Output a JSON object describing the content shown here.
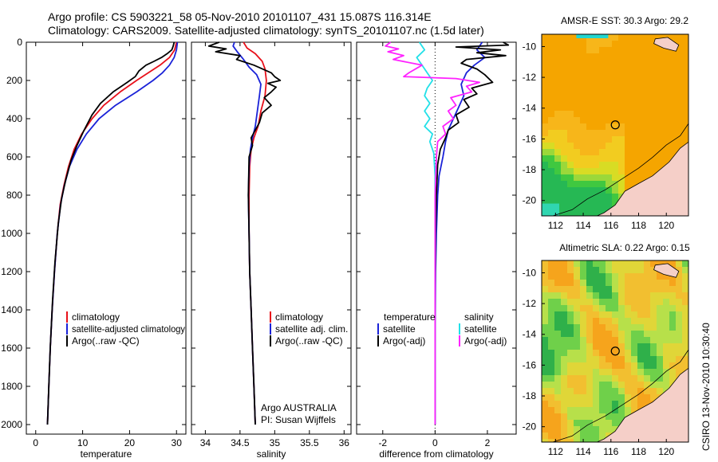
{
  "header": {
    "line1": "Argo profile: CS 5903221_58 05-Nov-2010 20101107_431 15.087S 116.314E",
    "line2": "Climatology: CARS2009. Satellite-adjusted climatology: synTS_20101107.nc (1.5d later)"
  },
  "credit": "CSIRO 13-Nov-2010 10:30:40",
  "colors": {
    "red": "#e8101a",
    "blue": "#1a22d8",
    "black": "#000000",
    "cyan": "#22e0e8",
    "magenta": "#ff22ff"
  },
  "chart_data": [
    {
      "type": "line",
      "xlabel": "temperature",
      "xlim": [
        -2,
        32
      ],
      "ylim": [
        2050,
        0
      ],
      "xticks": [
        0,
        10,
        20,
        30
      ],
      "yticks": [
        0,
        200,
        400,
        600,
        800,
        1000,
        1200,
        1400,
        1600,
        1800,
        2000
      ],
      "series": [
        {
          "name": "climatology",
          "color": "red",
          "points": [
            [
              30.0,
              0
            ],
            [
              29.6,
              40
            ],
            [
              28.5,
              80
            ],
            [
              26.5,
              120
            ],
            [
              24.0,
              160
            ],
            [
              21.5,
              200
            ],
            [
              18.0,
              260
            ],
            [
              14.5,
              330
            ],
            [
              12.0,
              400
            ],
            [
              9.8,
              480
            ],
            [
              8.2,
              560
            ],
            [
              7.0,
              650
            ],
            [
              6.0,
              750
            ],
            [
              5.2,
              850
            ],
            [
              4.6,
              1000
            ],
            [
              4.0,
              1200
            ],
            [
              3.5,
              1400
            ],
            [
              3.1,
              1600
            ],
            [
              2.8,
              1800
            ],
            [
              2.5,
              2000
            ]
          ]
        },
        {
          "name": "satellite-adjusted climatology",
          "color": "blue",
          "points": [
            [
              30.2,
              0
            ],
            [
              30.0,
              40
            ],
            [
              29.5,
              80
            ],
            [
              28.5,
              120
            ],
            [
              27.0,
              160
            ],
            [
              25.0,
              200
            ],
            [
              21.5,
              260
            ],
            [
              17.0,
              330
            ],
            [
              13.5,
              400
            ],
            [
              10.8,
              480
            ],
            [
              8.8,
              560
            ],
            [
              7.2,
              650
            ],
            [
              6.1,
              750
            ],
            [
              5.3,
              850
            ],
            [
              4.6,
              1000
            ],
            [
              4.0,
              1200
            ],
            [
              3.5,
              1400
            ],
            [
              3.1,
              1600
            ],
            [
              2.8,
              1800
            ],
            [
              2.5,
              2000
            ]
          ]
        },
        {
          "name": "Argo(..raw -QC)",
          "color": "black",
          "points": [
            [
              29.5,
              0
            ],
            [
              29.3,
              20
            ],
            [
              29.0,
              40
            ],
            [
              28.0,
              60
            ],
            [
              26.8,
              80
            ],
            [
              25.2,
              100
            ],
            [
              23.5,
              120
            ],
            [
              22.0,
              150
            ],
            [
              21.2,
              180
            ],
            [
              19.5,
              210
            ],
            [
              16.5,
              260
            ],
            [
              13.8,
              320
            ],
            [
              12.0,
              380
            ],
            [
              10.3,
              460
            ],
            [
              8.8,
              540
            ],
            [
              7.5,
              620
            ],
            [
              6.4,
              720
            ],
            [
              5.5,
              820
            ],
            [
              4.8,
              950
            ],
            [
              4.1,
              1150
            ],
            [
              3.6,
              1350
            ],
            [
              3.1,
              1600
            ],
            [
              2.8,
              1800
            ],
            [
              2.5,
              2000
            ]
          ]
        }
      ],
      "legend": {
        "placement": "lower-right",
        "entries": [
          "climatology",
          "satellite-adjusted climatology",
          "Argo(..raw -QC)"
        ]
      }
    },
    {
      "type": "line",
      "xlabel": "salinity",
      "xlim": [
        33.8,
        36.1
      ],
      "ylim": [
        2050,
        0
      ],
      "xticks": [
        34,
        34.5,
        35,
        35.5,
        36
      ],
      "yticks": [
        0,
        200,
        400,
        600,
        800,
        1000,
        1200,
        1400,
        1600,
        1800,
        2000
      ],
      "series": [
        {
          "name": "climatology",
          "color": "red",
          "points": [
            [
              34.55,
              0
            ],
            [
              34.6,
              30
            ],
            [
              34.72,
              60
            ],
            [
              34.82,
              100
            ],
            [
              34.86,
              140
            ],
            [
              34.88,
              200
            ],
            [
              34.86,
              280
            ],
            [
              34.8,
              360
            ],
            [
              34.76,
              440
            ],
            [
              34.7,
              500
            ],
            [
              34.66,
              560
            ],
            [
              34.64,
              650
            ],
            [
              34.63,
              800
            ],
            [
              34.63,
              1000
            ],
            [
              34.64,
              1200
            ],
            [
              34.66,
              1400
            ],
            [
              34.68,
              1600
            ],
            [
              34.7,
              1800
            ],
            [
              34.72,
              2000
            ]
          ]
        },
        {
          "name": "satellite adj. clim.",
          "color": "blue",
          "points": [
            [
              34.42,
              0
            ],
            [
              34.4,
              20
            ],
            [
              34.46,
              50
            ],
            [
              34.55,
              90
            ],
            [
              34.63,
              130
            ],
            [
              34.74,
              170
            ],
            [
              34.8,
              220
            ],
            [
              34.78,
              280
            ],
            [
              34.75,
              360
            ],
            [
              34.72,
              440
            ],
            [
              34.68,
              500
            ],
            [
              34.65,
              560
            ],
            [
              34.63,
              650
            ],
            [
              34.62,
              800
            ],
            [
              34.63,
              1000
            ],
            [
              34.64,
              1200
            ],
            [
              34.66,
              1400
            ],
            [
              34.68,
              1600
            ],
            [
              34.7,
              1800
            ],
            [
              34.72,
              2000
            ]
          ]
        },
        {
          "name": "Argo(..raw -QC)",
          "color": "black",
          "points": [
            [
              34.2,
              0
            ],
            [
              34.05,
              20
            ],
            [
              34.3,
              35
            ],
            [
              34.15,
              50
            ],
            [
              34.5,
              70
            ],
            [
              34.45,
              90
            ],
            [
              34.7,
              120
            ],
            [
              34.95,
              160
            ],
            [
              35.0,
              180
            ],
            [
              35.08,
              200
            ],
            [
              34.9,
              215
            ],
            [
              35.02,
              235
            ],
            [
              34.95,
              260
            ],
            [
              34.85,
              290
            ],
            [
              34.95,
              330
            ],
            [
              34.82,
              370
            ],
            [
              34.78,
              420
            ],
            [
              34.72,
              460
            ],
            [
              34.66,
              500
            ],
            [
              34.68,
              540
            ],
            [
              34.63,
              600
            ],
            [
              34.62,
              800
            ],
            [
              34.63,
              1000
            ],
            [
              34.64,
              1200
            ],
            [
              34.66,
              1400
            ],
            [
              34.68,
              1600
            ],
            [
              34.7,
              1800
            ],
            [
              34.72,
              2000
            ]
          ]
        }
      ],
      "legend": {
        "placement": "lower-right",
        "entries": [
          "climatology",
          "satellite adj. clim.",
          "Argo(..raw -QC)"
        ]
      },
      "annotations": [
        "Argo AUSTRALIA",
        "PI: Susan Wijffels"
      ]
    },
    {
      "type": "line",
      "xlabel": "difference from climatology",
      "xlim": [
        -3.0,
        3.1
      ],
      "ylim": [
        2050,
        0
      ],
      "xticks": [
        -2,
        0,
        2
      ],
      "yticks": [
        0,
        200,
        400,
        600,
        800,
        1000,
        1200,
        1400,
        1600,
        1800,
        2000
      ],
      "zero_line": "dotted",
      "series": [
        {
          "name": "temperature satellite",
          "color": "blue",
          "points": [
            [
              1.8,
              0
            ],
            [
              1.6,
              40
            ],
            [
              1.9,
              80
            ],
            [
              1.5,
              120
            ],
            [
              1.2,
              160
            ],
            [
              1.0,
              220
            ],
            [
              1.1,
              280
            ],
            [
              0.9,
              340
            ],
            [
              0.7,
              400
            ],
            [
              0.5,
              460
            ],
            [
              0.4,
              520
            ],
            [
              0.3,
              600
            ],
            [
              0.15,
              700
            ],
            [
              0.1,
              800
            ],
            [
              0.05,
              1000
            ],
            [
              0.02,
              1200
            ],
            [
              0.0,
              1600
            ],
            [
              0.0,
              2000
            ]
          ]
        },
        {
          "name": "temperature Argo(-adj)",
          "color": "black",
          "points": [
            [
              2.6,
              0
            ],
            [
              2.8,
              15
            ],
            [
              0.8,
              25
            ],
            [
              2.5,
              40
            ],
            [
              1.6,
              55
            ],
            [
              2.7,
              70
            ],
            [
              1.2,
              90
            ],
            [
              1.0,
              110
            ],
            [
              1.6,
              140
            ],
            [
              1.9,
              170
            ],
            [
              2.2,
              210
            ],
            [
              1.4,
              240
            ],
            [
              1.6,
              270
            ],
            [
              1.1,
              300
            ],
            [
              1.3,
              340
            ],
            [
              0.8,
              380
            ],
            [
              0.9,
              420
            ],
            [
              0.5,
              460
            ],
            [
              0.4,
              500
            ],
            [
              0.2,
              560
            ],
            [
              0.1,
              640
            ],
            [
              0.05,
              800
            ],
            [
              0.02,
              1000
            ],
            [
              0.0,
              1400
            ],
            [
              0.0,
              2000
            ]
          ]
        },
        {
          "name": "salinity satellite",
          "color": "cyan",
          "points": [
            [
              -0.6,
              0
            ],
            [
              -0.4,
              40
            ],
            [
              -0.7,
              80
            ],
            [
              -0.5,
              120
            ],
            [
              -0.3,
              160
            ],
            [
              -0.1,
              200
            ],
            [
              -0.3,
              240
            ],
            [
              -0.4,
              280
            ],
            [
              -0.2,
              320
            ],
            [
              -0.4,
              360
            ],
            [
              -0.2,
              400
            ],
            [
              -0.4,
              440
            ],
            [
              -0.1,
              480
            ],
            [
              -0.2,
              520
            ],
            [
              -0.05,
              580
            ],
            [
              0.0,
              700
            ],
            [
              0.0,
              1000
            ],
            [
              0.0,
              1500
            ],
            [
              0.0,
              2000
            ]
          ]
        },
        {
          "name": "salinity Argo(-adj)",
          "color": "magenta",
          "points": [
            [
              -1.7,
              0
            ],
            [
              -1.9,
              20
            ],
            [
              -1.4,
              35
            ],
            [
              -1.8,
              50
            ],
            [
              -1.2,
              70
            ],
            [
              -1.6,
              90
            ],
            [
              -0.5,
              120
            ],
            [
              -1.0,
              160
            ],
            [
              -1.2,
              180
            ],
            [
              0.8,
              190
            ],
            [
              1.7,
              210
            ],
            [
              1.2,
              230
            ],
            [
              1.4,
              260
            ],
            [
              0.6,
              290
            ],
            [
              0.8,
              330
            ],
            [
              0.5,
              360
            ],
            [
              0.7,
              400
            ],
            [
              0.3,
              440
            ],
            [
              0.4,
              480
            ],
            [
              0.1,
              520
            ],
            [
              0.05,
              600
            ],
            [
              0.0,
              800
            ],
            [
              0.0,
              1200
            ],
            [
              0.0,
              2000
            ]
          ]
        }
      ],
      "legend": {
        "placement": "lower-center",
        "headers": [
          "temperature",
          "salinity"
        ],
        "entries": [
          "satellite",
          "Argo(-adj)",
          "satellite",
          "Argo(-adj)"
        ]
      }
    },
    {
      "type": "heatmap",
      "title": "AMSR-E SST: 30.3 Argo: 29.2",
      "xlim": [
        111,
        121.6
      ],
      "ylim": [
        -21,
        -9.2
      ],
      "xticks": [
        112,
        114,
        116,
        118,
        120
      ],
      "yticks": [
        -10,
        -12,
        -14,
        -16,
        -18,
        -20
      ],
      "marker": {
        "lon": 116.314,
        "lat": -15.087
      }
    },
    {
      "type": "heatmap",
      "title": "Altimetric SLA: 0.22 Argo: 0.15",
      "xlim": [
        111,
        121.6
      ],
      "ylim": [
        -21,
        -9.2
      ],
      "xticks": [
        112,
        114,
        116,
        118,
        120
      ],
      "yticks": [
        -10,
        -12,
        -14,
        -16,
        -18,
        -20
      ],
      "marker": {
        "lon": 116.314,
        "lat": -15.087
      }
    }
  ]
}
